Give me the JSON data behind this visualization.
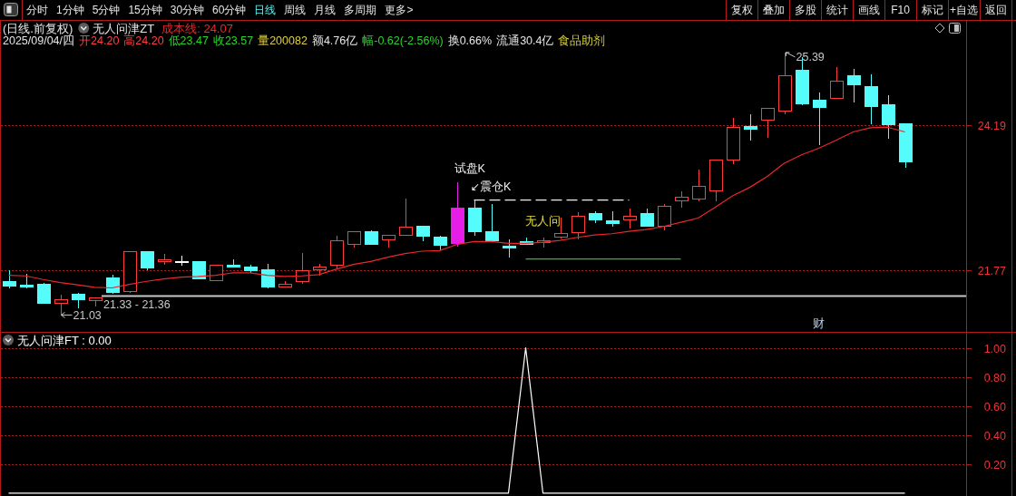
{
  "chart_data": [
    {
      "type": "candlestick",
      "title": "(日线.前复权)",
      "subtitle": "2025/09/04/四 开24.20 高24.20 低23.47 收23.57 量200082 额4.76亿 幅-0.62(-2.56%) 换0.66% 流通30.4亿 食品助剂",
      "annotations": [
        "分时",
        "1分钟",
        "5分钟",
        "15分钟",
        "30分钟",
        "60分钟",
        "日线",
        "周线",
        "月线",
        "多周期",
        "更多>",
        "复权",
        "叠加",
        "多股",
        "统计",
        "画线",
        "F10",
        "标记",
        "+自选",
        "返回",
        "无人问津ZT",
        "试盘K",
        "↙震仓K",
        "无人问",
        "25.39",
        "21.03",
        "财"
      ],
      "categories": [
        null,
        null,
        null,
        null,
        null,
        null,
        null,
        null,
        null,
        null,
        null,
        null,
        null,
        null,
        null,
        null,
        null,
        null,
        null,
        null,
        null,
        null,
        null,
        null,
        null,
        null,
        null,
        null,
        null,
        null,
        null,
        null,
        null,
        null,
        null,
        null,
        null,
        null,
        null,
        null,
        null,
        null,
        null,
        null,
        null,
        null,
        null,
        null,
        null,
        null,
        null,
        null,
        null
      ],
      "ohlc": [
        [
          21.59,
          21.77,
          21.47,
          21.51
        ],
        [
          21.53,
          21.72,
          21.47,
          21.49
        ],
        [
          21.54,
          21.57,
          21.22,
          21.23
        ],
        [
          21.23,
          21.36,
          21.03,
          21.28
        ],
        [
          21.37,
          21.39,
          21.14,
          21.28
        ],
        [
          21.27,
          21.31,
          21.17,
          21.31
        ],
        [
          21.65,
          21.7,
          21.38,
          21.4
        ],
        [
          21.42,
          22.09,
          21.39,
          22.09
        ],
        [
          22.09,
          22.09,
          21.77,
          21.81
        ],
        [
          21.91,
          22.05,
          21.86,
          21.94
        ],
        [
          21.92,
          22.01,
          21.85,
          21.92
        ],
        [
          21.91,
          21.91,
          21.63,
          21.63
        ],
        [
          21.6,
          21.86,
          21.6,
          21.86
        ],
        [
          21.85,
          21.96,
          21.82,
          21.82
        ],
        [
          21.82,
          21.87,
          21.73,
          21.77
        ],
        [
          21.78,
          21.88,
          21.47,
          21.5
        ],
        [
          21.49,
          21.59,
          21.49,
          21.54
        ],
        [
          21.58,
          22.06,
          21.55,
          21.76
        ],
        [
          21.78,
          21.88,
          21.68,
          21.82
        ],
        [
          21.85,
          22.34,
          21.79,
          22.27
        ],
        [
          22.21,
          22.41,
          22.15,
          22.41
        ],
        [
          22.42,
          22.44,
          22.19,
          22.21
        ],
        [
          22.28,
          22.35,
          22.15,
          22.35
        ],
        [
          22.36,
          22.97,
          22.36,
          22.49
        ],
        [
          22.51,
          22.51,
          22.25,
          22.34
        ],
        [
          22.32,
          22.35,
          22.11,
          22.19
        ],
        [
          22.22,
          23.24,
          22.17,
          22.81
        ],
        [
          22.81,
          22.94,
          22.34,
          22.41
        ],
        [
          22.41,
          22.87,
          22.26,
          22.26
        ],
        [
          22.18,
          22.28,
          21.98,
          22.15
        ],
        [
          22.25,
          22.32,
          22.2,
          22.21
        ],
        [
          22.23,
          22.31,
          22.15,
          22.26
        ],
        [
          22.32,
          22.65,
          22.3,
          22.39
        ],
        [
          22.4,
          22.74,
          22.28,
          22.67
        ],
        [
          22.72,
          22.76,
          22.55,
          22.61
        ],
        [
          22.6,
          22.76,
          22.49,
          22.55
        ],
        [
          22.61,
          22.8,
          22.46,
          22.67
        ],
        [
          22.72,
          22.8,
          22.51,
          22.51
        ],
        [
          22.5,
          22.87,
          22.43,
          22.84
        ],
        [
          22.92,
          23.09,
          22.81,
          22.99
        ],
        [
          22.95,
          23.45,
          22.92,
          23.16
        ],
        [
          23.09,
          23.6,
          22.92,
          23.6
        ],
        [
          23.61,
          24.31,
          23.54,
          24.14
        ],
        [
          24.16,
          24.37,
          23.92,
          24.11
        ],
        [
          24.26,
          24.46,
          23.97,
          24.46
        ],
        [
          24.41,
          25.39,
          24.37,
          25.01
        ],
        [
          25.09,
          25.32,
          24.52,
          24.53
        ],
        [
          24.59,
          24.73,
          23.85,
          24.47
        ],
        [
          24.62,
          25.15,
          24.62,
          24.91
        ],
        [
          25.0,
          25.12,
          24.56,
          24.85
        ],
        [
          24.83,
          25.03,
          24.2,
          24.49
        ],
        [
          24.52,
          24.68,
          23.96,
          24.19
        ],
        [
          24.2,
          24.2,
          23.47,
          23.57
        ]
      ],
      "colors": [
        "#54fcfc",
        "#54fcfc",
        "#54fcfc",
        "#ff3c3c",
        "#54fcfc",
        "#ff3c3c",
        "#54fcfc",
        "#ff3c3c",
        "#54fcfc",
        "#ff3c3c",
        "#ffffff",
        "#54fcfc",
        "#ff3c3c",
        "#54fcfc",
        "#54fcfc",
        "#54fcfc",
        "#ff3c3c",
        "#ff3c3c",
        "#ff3c3c",
        "#ff3c3c",
        "#ff3c3c",
        "#54fcfc",
        "#ff3c3c",
        "#ff3c3c",
        "#54fcfc",
        "#54fcfc",
        "#e61ee6",
        "#54fcfc",
        "#54fcfc",
        "#54fcfc",
        "#54fcfc",
        "#ff3c3c",
        "#ff3c3c",
        "#ff3c3c",
        "#54fcfc",
        "#54fcfc",
        "#ff3c3c",
        "#54fcfc",
        "#ff3c3c",
        "#ff3c3c",
        "#ff3c3c",
        "#ff3c3c",
        "#ff3c3c",
        "#54fcfc",
        "#ff3c3c",
        "#ff3c3c",
        "#54fcfc",
        "#54fcfc",
        "#ff3c3c",
        "#54fcfc",
        "#54fcfc",
        "#54fcfc",
        "#54fcfc"
      ],
      "series": [
        {
          "name": "成本线: 24.07",
          "type": "line",
          "color": "#e8282c",
          "values": [
            21.69,
            21.68,
            21.62,
            21.57,
            21.53,
            21.49,
            21.48,
            21.54,
            21.59,
            21.63,
            21.66,
            21.67,
            21.69,
            21.73,
            21.73,
            21.69,
            21.67,
            21.68,
            21.7,
            21.79,
            21.87,
            21.92,
            21.99,
            22.05,
            22.09,
            22.1,
            22.2,
            22.25,
            22.25,
            22.22,
            22.22,
            22.24,
            22.27,
            22.32,
            22.36,
            22.38,
            22.42,
            22.45,
            22.5,
            22.57,
            22.64,
            22.82,
            23.01,
            23.15,
            23.33,
            23.55,
            23.69,
            23.8,
            23.93,
            24.07,
            24.14,
            24.15,
            24.07
          ]
        },
        {
          "type": "line",
          "color": "#22c022",
          "values": [
            null,
            null,
            null,
            null,
            null,
            null,
            null,
            null,
            null,
            null,
            null,
            null,
            null,
            null,
            null,
            null,
            null,
            null,
            null,
            null,
            null,
            null,
            null,
            null,
            null,
            null,
            null,
            null,
            null,
            null,
            21.96,
            21.96,
            21.96,
            21.96,
            21.96,
            21.96,
            21.96,
            21.96,
            21.96,
            21.96,
            null,
            null,
            null,
            null,
            null,
            null,
            null,
            null,
            null,
            null,
            null,
            null,
            null
          ]
        },
        {
          "type": "line",
          "color": "#f0f0f0",
          "line_style": "dashed",
          "values": [
            null,
            null,
            null,
            null,
            null,
            null,
            null,
            null,
            null,
            null,
            null,
            null,
            null,
            null,
            null,
            null,
            null,
            null,
            null,
            null,
            null,
            null,
            null,
            null,
            null,
            null,
            null,
            22.94,
            22.94,
            22.94,
            22.94,
            22.94,
            22.94,
            22.94,
            22.94,
            22.94,
            22.94,
            null,
            null,
            null,
            null,
            null,
            null,
            null,
            null,
            null,
            null,
            null,
            null,
            null,
            null,
            null,
            null
          ]
        }
      ],
      "bands": [
        {
          "axis": "y",
          "from": 21.33,
          "to": 21.36,
          "label": "21.33 - 21.36",
          "color": "#c8c8c8"
        }
      ],
      "ylim": [
        20.75,
        25.93
      ],
      "yticks": [
        21.77,
        24.19
      ],
      "grid": "y",
      "tick_labels": "y"
    },
    {
      "type": "line",
      "categories": [
        null,
        null,
        null,
        null,
        null,
        null,
        null,
        null,
        null,
        null,
        null,
        null,
        null,
        null,
        null,
        null,
        null,
        null,
        null,
        null,
        null,
        null,
        null,
        null,
        null,
        null,
        null,
        null,
        null,
        null,
        null,
        null,
        null,
        null,
        null,
        null,
        null,
        null,
        null,
        null,
        null,
        null,
        null,
        null,
        null,
        null,
        null,
        null,
        null,
        null,
        null,
        null,
        null
      ],
      "series": [
        {
          "name": "无人问津FT : 0.00",
          "color": "#ffffff",
          "values": [
            0,
            0,
            0,
            0,
            0,
            0,
            0,
            0,
            0,
            0,
            0,
            0,
            0,
            0,
            0,
            0,
            0,
            0,
            0,
            0,
            0,
            0,
            0,
            0,
            0,
            0,
            0,
            0,
            0,
            0,
            1,
            0,
            0,
            0,
            0,
            0,
            0,
            0,
            0,
            0,
            0,
            0,
            0,
            0,
            0,
            0,
            0,
            0,
            0,
            0,
            0,
            0,
            0
          ]
        }
      ],
      "ylim": [
        -0.02,
        1.11
      ],
      "yticks": [
        {
          "value": 0.2,
          "label": "0.20"
        },
        {
          "value": 0.4,
          "label": "0.40"
        },
        {
          "value": 0.6,
          "label": "0.60"
        },
        {
          "value": 0.8,
          "label": "0.80"
        },
        {
          "value": 1,
          "label": "1.00"
        }
      ],
      "grid": "y",
      "tick_labels": "y"
    }
  ]
}
